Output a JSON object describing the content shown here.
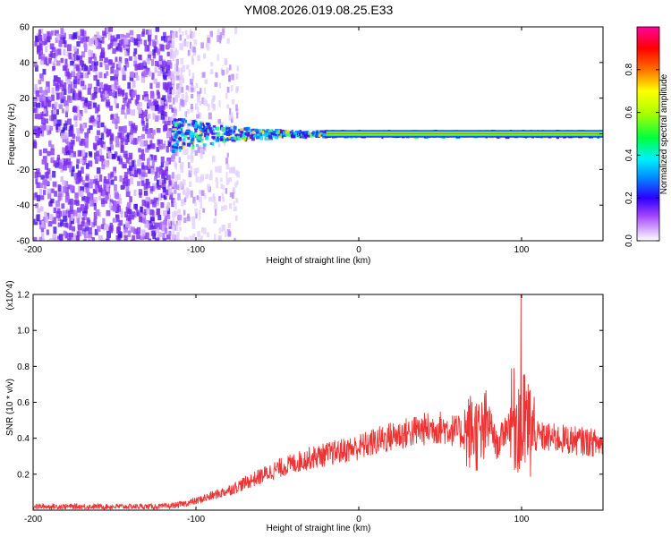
{
  "title": "YM08.2026.019.08.25.E33",
  "chart_data": [
    {
      "type": "heatmap",
      "xlabel": "Height of straight line (km)",
      "ylabel": "Frequency (Hz)",
      "xlim": [
        -200,
        150
      ],
      "ylim": [
        -60,
        60
      ],
      "xticks": [
        "-200",
        "-100",
        "0",
        "100"
      ],
      "yticks": [
        "60",
        "40",
        "20",
        "0",
        "-20",
        "-40",
        "-60"
      ],
      "colorbar": {
        "label": "Normalized spectral amplitude",
        "range": [
          0,
          1
        ],
        "ticks": [
          "0.0",
          "0.2",
          "0.4",
          "0.6",
          "0.8"
        ],
        "colors": [
          "#ffffff",
          "#d8a8ff",
          "#9a40ff",
          "#2a00ff",
          "#0080ff",
          "#00e0ff",
          "#00ff60",
          "#a0ff00",
          "#ffff00",
          "#ff8000",
          "#ff0000",
          "#ff00a0"
        ]
      },
      "features": {
        "noise_region_x": [
          -200,
          -115
        ],
        "fading_noise_x": [
          -115,
          -75
        ],
        "signal_start_x": -115,
        "central_line_frequency": 0
      }
    },
    {
      "type": "line",
      "xlabel": "Height of straight line (km)",
      "ylabel": "SNR (10 * v/v)",
      "scale_note": "(x10^4)",
      "xlim": [
        -200,
        150
      ],
      "ylim": [
        0,
        1.2
      ],
      "xticks": [
        "-200",
        "-100",
        "0",
        "100"
      ],
      "yticks": [
        "0.2",
        "0.4",
        "0.6",
        "0.8",
        "1.0",
        "1.2"
      ],
      "series": [
        {
          "color": "#ee3333",
          "x": [
            -200,
            -180,
            -160,
            -140,
            -120,
            -110,
            -100,
            -90,
            -80,
            -70,
            -60,
            -50,
            -40,
            -30,
            -20,
            -10,
            0,
            10,
            20,
            30,
            40,
            50,
            60,
            65,
            70,
            75,
            80,
            85,
            90,
            95,
            100,
            105,
            108,
            110,
            120,
            130,
            140,
            150
          ],
          "y": [
            0.02,
            0.02,
            0.02,
            0.02,
            0.02,
            0.03,
            0.05,
            0.08,
            0.11,
            0.15,
            0.19,
            0.23,
            0.26,
            0.29,
            0.31,
            0.33,
            0.35,
            0.38,
            0.41,
            0.43,
            0.45,
            0.46,
            0.44,
            0.42,
            0.45,
            0.4,
            0.5,
            0.35,
            0.45,
            0.5,
            0.5,
            0.45,
            0.4,
            0.41,
            0.4,
            0.39,
            0.38,
            0.37
          ]
        }
      ]
    }
  ]
}
